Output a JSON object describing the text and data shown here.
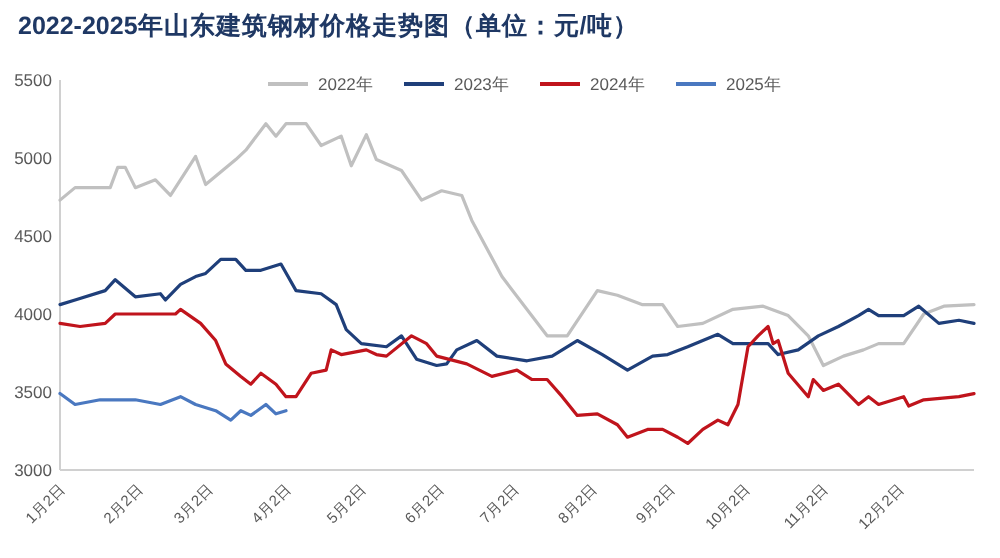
{
  "chart_data": {
    "type": "line",
    "title": "2022-2025年山东建筑钢材价格走势图（单位：元/吨）",
    "legend": "top",
    "grid": false,
    "line_style": "solid",
    "marker": "none",
    "xlim": [
      "--01-01",
      "--12-31"
    ],
    "xticks": [
      {
        "value": "--01-02",
        "label": "1月2日"
      },
      {
        "value": "--02-02",
        "label": "2月2日"
      },
      {
        "value": "--03-02",
        "label": "3月2日"
      },
      {
        "value": "--04-02",
        "label": "4月2日"
      },
      {
        "value": "--05-02",
        "label": "5月2日"
      },
      {
        "value": "--06-02",
        "label": "6月2日"
      },
      {
        "value": "--07-02",
        "label": "7月2日"
      },
      {
        "value": "--08-02",
        "label": "8月2日"
      },
      {
        "value": "--09-02",
        "label": "9月2日"
      },
      {
        "value": "--10-02",
        "label": "10月2日"
      },
      {
        "value": "--11-02",
        "label": "11月2日"
      },
      {
        "value": "--12-02",
        "label": "12月2日"
      }
    ],
    "ylim": [
      3000,
      5500
    ],
    "yticks": [
      3000,
      3500,
      4000,
      4500,
      5000,
      5500
    ],
    "series": [
      {
        "name": "2022年",
        "color": "#c0c0c0",
        "x": [
          "--01-01",
          "--01-07",
          "--01-21",
          "--01-24",
          "--01-27",
          "--01-31",
          "--02-08",
          "--02-14",
          "--02-24",
          "--02-28",
          "--03-12",
          "--03-16",
          "--03-24",
          "--03-28",
          "--04-01",
          "--04-09",
          "--04-15",
          "--04-23",
          "--04-27",
          "--05-03",
          "--05-07",
          "--05-17",
          "--05-25",
          "--06-02",
          "--06-10",
          "--06-14",
          "--06-26",
          "--07-14",
          "--07-22",
          "--08-03",
          "--08-11",
          "--08-21",
          "--08-29",
          "--09-04",
          "--09-14",
          "--09-26",
          "--10-08",
          "--10-18",
          "--10-26",
          "--11-01",
          "--11-09",
          "--11-17",
          "--11-23",
          "--12-03",
          "--12-11",
          "--12-19",
          "--12-31"
        ],
        "values": [
          4730,
          4810,
          4810,
          4940,
          4940,
          4810,
          4860,
          4760,
          5010,
          4830,
          4990,
          5050,
          5220,
          5140,
          5220,
          5220,
          5080,
          5140,
          4950,
          5150,
          4990,
          4920,
          4730,
          4790,
          4760,
          4600,
          4240,
          3860,
          3860,
          4150,
          4120,
          4060,
          4060,
          3920,
          3940,
          4030,
          4050,
          3990,
          3860,
          3670,
          3730,
          3770,
          3810,
          3810,
          4000,
          4050,
          4060
        ]
      },
      {
        "name": "2023年",
        "color": "#1f3f7a",
        "x": [
          "--01-01",
          "--01-07",
          "--01-19",
          "--01-23",
          "--01-31",
          "--02-10",
          "--02-12",
          "--02-18",
          "--02-24",
          "--02-28",
          "--03-06",
          "--03-12",
          "--03-16",
          "--03-22",
          "--03-30",
          "--04-05",
          "--04-15",
          "--04-21",
          "--04-25",
          "--05-01",
          "--05-11",
          "--05-17",
          "--05-23",
          "--05-31",
          "--06-04",
          "--06-08",
          "--06-16",
          "--06-24",
          "--07-06",
          "--07-16",
          "--07-26",
          "--08-05",
          "--08-15",
          "--08-25",
          "--08-31",
          "--09-08",
          "--09-20",
          "--09-26",
          "--10-10",
          "--10-14",
          "--10-22",
          "--10-30",
          "--11-07",
          "--11-15",
          "--11-19",
          "--11-23",
          "--12-03",
          "--12-09",
          "--12-17",
          "--12-25",
          "--12-31"
        ],
        "values": [
          4060,
          4090,
          4150,
          4220,
          4110,
          4130,
          4090,
          4190,
          4240,
          4260,
          4350,
          4350,
          4280,
          4280,
          4320,
          4150,
          4130,
          4060,
          3900,
          3810,
          3790,
          3860,
          3710,
          3670,
          3680,
          3770,
          3830,
          3730,
          3700,
          3730,
          3830,
          3740,
          3640,
          3730,
          3740,
          3790,
          3870,
          3810,
          3810,
          3740,
          3770,
          3860,
          3920,
          3990,
          4030,
          3990,
          3990,
          4050,
          3940,
          3960,
          3940
        ]
      },
      {
        "name": "2024年",
        "color": "#c0141c",
        "x": [
          "--01-01",
          "--01-09",
          "--01-19",
          "--01-23",
          "--02-16",
          "--02-18",
          "--02-26",
          "--03-04",
          "--03-08",
          "--03-14",
          "--03-18",
          "--03-22",
          "--03-28",
          "--04-01",
          "--04-05",
          "--04-11",
          "--04-17",
          "--04-19",
          "--04-23",
          "--05-03",
          "--05-07",
          "--05-11",
          "--05-21",
          "--05-27",
          "--05-31",
          "--06-12",
          "--06-22",
          "--07-02",
          "--07-08",
          "--07-14",
          "--07-20",
          "--07-26",
          "--08-03",
          "--08-11",
          "--08-15",
          "--08-23",
          "--08-29",
          "--09-04",
          "--09-08",
          "--09-14",
          "--09-20",
          "--09-24",
          "--09-28",
          "--10-02",
          "--10-06",
          "--10-10",
          "--10-12",
          "--10-14",
          "--10-18",
          "--10-26",
          "--10-28",
          "--11-01",
          "--11-07",
          "--11-15",
          "--11-19",
          "--11-23",
          "--12-03",
          "--12-05",
          "--12-11",
          "--12-25",
          "--12-31"
        ],
        "values": [
          3940,
          3920,
          3940,
          4000,
          4000,
          4030,
          3940,
          3830,
          3680,
          3600,
          3550,
          3620,
          3550,
          3470,
          3470,
          3620,
          3640,
          3770,
          3740,
          3770,
          3740,
          3730,
          3860,
          3810,
          3730,
          3680,
          3600,
          3640,
          3580,
          3580,
          3470,
          3350,
          3360,
          3290,
          3210,
          3260,
          3260,
          3210,
          3170,
          3260,
          3320,
          3290,
          3420,
          3790,
          3860,
          3920,
          3810,
          3830,
          3620,
          3470,
          3580,
          3510,
          3550,
          3420,
          3470,
          3420,
          3470,
          3410,
          3450,
          3470,
          3490
        ]
      },
      {
        "name": "2025年",
        "color": "#4a78c0",
        "x": [
          "--01-01",
          "--01-07",
          "--01-17",
          "--01-31",
          "--02-10",
          "--02-18",
          "--02-24",
          "--03-04",
          "--03-10",
          "--03-14",
          "--03-18",
          "--03-24",
          "--03-28",
          "--04-01"
        ],
        "values": [
          3490,
          3420,
          3450,
          3450,
          3420,
          3470,
          3420,
          3380,
          3320,
          3380,
          3350,
          3420,
          3360,
          3380
        ]
      }
    ]
  }
}
